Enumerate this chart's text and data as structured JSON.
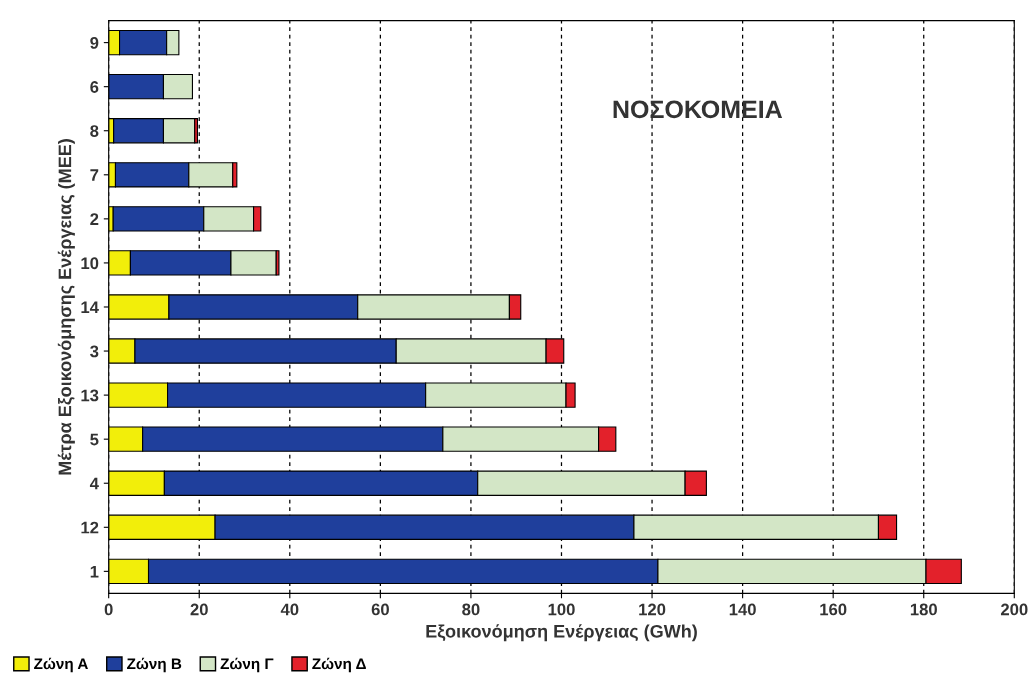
{
  "chart_data": {
    "type": "bar",
    "orientation": "horizontal",
    "stacked": true,
    "categories": [
      "9",
      "6",
      "8",
      "7",
      "2",
      "10",
      "14",
      "3",
      "13",
      "5",
      "4",
      "12",
      "1"
    ],
    "series": [
      {
        "name": "Ζώνη Α",
        "color": "#f2ee0a",
        "values": [
          2.4,
          0,
          1.1,
          1.5,
          1,
          4.8,
          13.3,
          5.8,
          13,
          7.5,
          12.3,
          23.5,
          8.8
        ]
      },
      {
        "name": "Ζώνη Β",
        "color": "#1f3f9c",
        "values": [
          10.4,
          12.1,
          11,
          16.2,
          20,
          22.2,
          41.7,
          57.7,
          57,
          66.3,
          69.2,
          92.5,
          112.5
        ]
      },
      {
        "name": "Ζώνη Γ",
        "color": "#d3e6c6",
        "values": [
          2.7,
          6.4,
          6.9,
          9.7,
          11,
          10,
          33.5,
          33.1,
          31,
          34.4,
          45.8,
          54,
          59.2
        ]
      },
      {
        "name": "Ζώνη Δ",
        "color": "#e3212b",
        "values": [
          0,
          0,
          0.6,
          0.9,
          1.6,
          0.6,
          2.5,
          3.9,
          2,
          3.8,
          4.7,
          4,
          7.8
        ]
      }
    ],
    "xlim": [
      0,
      200
    ],
    "xticks": [
      0,
      20,
      40,
      60,
      80,
      100,
      120,
      140,
      160,
      180,
      200
    ],
    "xlabel": "Εξοικονόμηση Ενέργειας (GWh)",
    "ylabel": "Μέτρα Εξοικονόμησης Ενέργειας (ΜΕΕ)",
    "annotations": [
      "ΝΟΣΟΚΟΜΕΙΑ"
    ],
    "grid": "x",
    "legend": "bottom left"
  }
}
